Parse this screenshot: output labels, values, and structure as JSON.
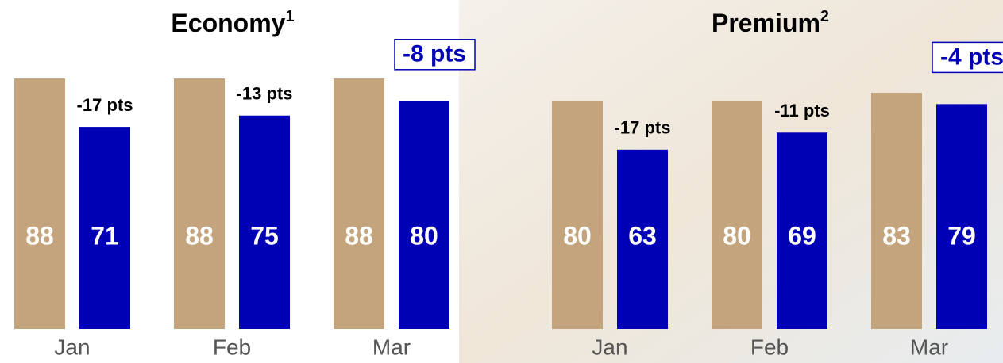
{
  "chart_data": [
    {
      "type": "bar",
      "title": "Economy",
      "title_note": "1",
      "categories": [
        "Jan",
        "Feb",
        "Mar"
      ],
      "series": [
        {
          "color": "#c4a47c",
          "values": [
            88,
            88,
            88
          ]
        },
        {
          "color": "#0000b4",
          "values": [
            71,
            75,
            80
          ]
        }
      ],
      "annotations": [
        "-17 pts",
        "-13 pts",
        "-8 pts"
      ]
    },
    {
      "type": "bar",
      "title": "Premium",
      "title_note": "2",
      "categories": [
        "Jan",
        "Feb",
        "Mar"
      ],
      "series": [
        {
          "color": "#c4a47c",
          "values": [
            80,
            80,
            83
          ]
        },
        {
          "color": "#0000b4",
          "values": [
            63,
            69,
            79
          ]
        }
      ],
      "annotations": [
        "-17 pts",
        "-11 pts",
        "-4 pts"
      ]
    }
  ]
}
